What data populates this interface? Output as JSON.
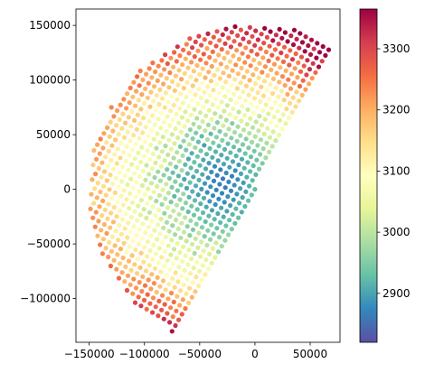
{
  "chart_data": {
    "type": "scatter",
    "title": "",
    "xlabel": "",
    "ylabel": "",
    "xlim": [
      -162000,
      77000
    ],
    "ylim": [
      -140000,
      165000
    ],
    "x_ticks": [
      -150000,
      -100000,
      -50000,
      0,
      50000
    ],
    "x_tick_labels": [
      "−150000",
      "−100000",
      "−50000",
      "0",
      "50000"
    ],
    "y_ticks": [
      -100000,
      -50000,
      0,
      50000,
      100000,
      150000
    ],
    "y_tick_labels": [
      "−100000",
      "−50000",
      "0",
      "50000",
      "100000",
      "150000"
    ],
    "grid": false,
    "colorbar": {
      "min": 2820,
      "max": 3365,
      "ticks": [
        2900,
        3000,
        3100,
        3200,
        3300
      ],
      "tick_labels": [
        "2900",
        "3000",
        "3100",
        "3200",
        "3300"
      ],
      "colormap": "Spectral_r",
      "colormap_stops": [
        "#5e4fa2",
        "#3288bd",
        "#66c2a5",
        "#abdda4",
        "#e6f598",
        "#ffffbf",
        "#fee08b",
        "#fdae61",
        "#f46d43",
        "#d53e4f",
        "#9e0142"
      ]
    },
    "description_of_points": {
      "grid_spacing": 6000,
      "center": [
        -30000,
        5000
      ],
      "center_value": 2860,
      "north_rim_value": 3230,
      "south_rim_value": 3290,
      "west_rim_value": 3150
    }
  }
}
